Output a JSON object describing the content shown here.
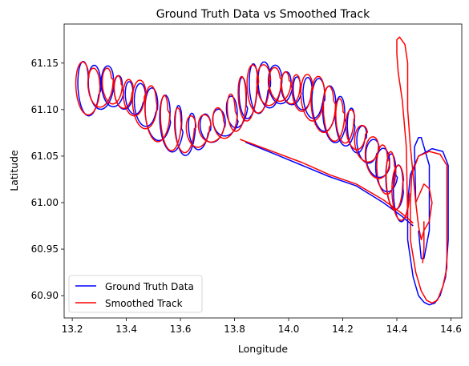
{
  "chart_data": {
    "type": "line",
    "title": "Ground Truth Data vs Smoothed Track",
    "xlabel": "Longitude",
    "ylabel": "Latitude",
    "xlim": [
      13.17,
      14.64
    ],
    "ylim": [
      60.876,
      61.192
    ],
    "xticks": [
      13.2,
      13.4,
      13.6,
      13.8,
      14.0,
      14.2,
      14.4,
      14.6
    ],
    "xtick_labels": [
      "13.2",
      "13.4",
      "13.6",
      "13.8",
      "14.0",
      "14.2",
      "14.4",
      "14.6"
    ],
    "yticks": [
      60.9,
      60.95,
      61.0,
      61.05,
      61.1,
      61.15
    ],
    "ytick_labels": [
      "60.90",
      "60.95",
      "61.00",
      "61.05",
      "61.10",
      "61.15"
    ],
    "grid": false,
    "legend_position": "lower-left",
    "series": [
      {
        "name": "Ground Truth Data",
        "color": "#0000ff",
        "segments": [
          {
            "kind": "loops",
            "x": [
              13.23,
              13.27,
              13.32,
              13.36,
              13.4,
              13.44,
              13.48,
              13.53,
              13.58,
              13.63,
              13.68,
              13.73,
              13.78,
              13.82,
              13.86,
              13.9,
              13.94,
              13.98,
              14.02,
              14.06,
              14.1,
              14.14,
              14.18,
              14.22,
              14.26,
              14.3,
              14.34,
              14.37,
              14.4,
              14.42
            ],
            "y": [
              61.125,
              61.12,
              61.128,
              61.122,
              61.115,
              61.11,
              61.1,
              61.09,
              61.08,
              61.075,
              61.078,
              61.082,
              61.09,
              61.105,
              61.12,
              61.125,
              61.128,
              61.126,
              61.12,
              61.115,
              61.11,
              61.1,
              61.09,
              61.085,
              61.07,
              61.055,
              61.04,
              61.03,
              61.015,
              61.005
            ],
            "rx": 0.035,
            "ry": 0.028
          },
          {
            "kind": "path",
            "x": [
              13.84,
              13.95,
              14.05,
              14.15,
              14.25,
              14.35,
              14.42,
              14.46
            ],
            "y": [
              61.065,
              61.052,
              61.04,
              61.028,
              61.018,
              61.0,
              60.985,
              60.975
            ]
          },
          {
            "kind": "path",
            "x": [
              14.44,
              14.46,
              14.48,
              14.5,
              14.52,
              14.54,
              14.56,
              14.58,
              14.59,
              14.59,
              14.57,
              14.53,
              14.48,
              14.45,
              14.44,
              14.44
            ],
            "y": [
              60.96,
              60.92,
              60.9,
              60.893,
              60.89,
              60.892,
              60.9,
              60.92,
              60.96,
              61.04,
              61.055,
              61.058,
              61.05,
              61.03,
              61.0,
              60.96
            ]
          },
          {
            "kind": "path",
            "x": [
              14.47,
              14.465,
              14.48,
              14.49,
              14.5,
              14.52,
              14.52,
              14.5,
              14.49,
              14.48
            ],
            "y": [
              61.0,
              61.06,
              61.07,
              61.07,
              61.06,
              61.04,
              60.97,
              60.94,
              60.94,
              60.97
            ]
          }
        ]
      },
      {
        "name": "Smoothed Track",
        "color": "#ff0000",
        "segments": [
          {
            "kind": "loops",
            "x": [
              13.23,
              13.27,
              13.32,
              13.36,
              13.4,
              13.44,
              13.48,
              13.53,
              13.58,
              13.63,
              13.68,
              13.73,
              13.78,
              13.82,
              13.86,
              13.9,
              13.94,
              13.98,
              14.02,
              14.06,
              14.1,
              14.14,
              14.18,
              14.22,
              14.26,
              14.3,
              14.34,
              14.37,
              14.4,
              14.42
            ],
            "y": [
              61.125,
              61.12,
              61.128,
              61.122,
              61.115,
              61.11,
              61.1,
              61.09,
              61.08,
              61.075,
              61.078,
              61.082,
              61.09,
              61.105,
              61.12,
              61.125,
              61.128,
              61.126,
              61.12,
              61.115,
              61.11,
              61.1,
              61.09,
              61.085,
              61.07,
              61.055,
              61.04,
              61.03,
              61.015,
              61.005
            ],
            "rx": 0.035,
            "ry": 0.028
          },
          {
            "kind": "path",
            "x": [
              13.82,
              13.95,
              14.05,
              14.15,
              14.25,
              14.35,
              14.42,
              14.46
            ],
            "y": [
              61.068,
              61.054,
              61.043,
              61.03,
              61.02,
              61.003,
              60.988,
              60.978
            ]
          },
          {
            "kind": "path",
            "x": [
              14.45,
              14.47,
              14.49,
              14.51,
              14.53,
              14.55,
              14.57,
              14.585,
              14.585,
              14.56,
              14.52,
              14.48,
              14.455,
              14.45,
              14.45
            ],
            "y": [
              60.96,
              60.925,
              60.905,
              60.895,
              60.892,
              60.895,
              60.91,
              60.93,
              61.04,
              61.052,
              61.055,
              61.05,
              61.03,
              61.0,
              60.96
            ]
          },
          {
            "kind": "path",
            "x": [
              14.44,
              14.435,
              14.42,
              14.405,
              14.4,
              14.4,
              14.41,
              14.43,
              14.44,
              14.44,
              14.45,
              14.46,
              14.47
            ],
            "y": [
              60.985,
              61.06,
              61.11,
              61.14,
              61.16,
              61.175,
              61.178,
              61.17,
              61.15,
              61.1,
              61.06,
              61.03,
              61.0
            ]
          },
          {
            "kind": "path",
            "x": [
              14.47,
              14.5,
              14.52,
              14.53,
              14.52,
              14.5,
              14.49,
              14.48,
              14.47
            ],
            "y": [
              61.0,
              61.02,
              61.015,
              61.0,
              60.98,
              60.97,
              60.96,
              60.975,
              61.0
            ]
          },
          {
            "kind": "path",
            "x": [
              14.5,
              14.5,
              14.495
            ],
            "y": [
              60.98,
              60.95,
              60.935
            ]
          }
        ]
      }
    ]
  }
}
